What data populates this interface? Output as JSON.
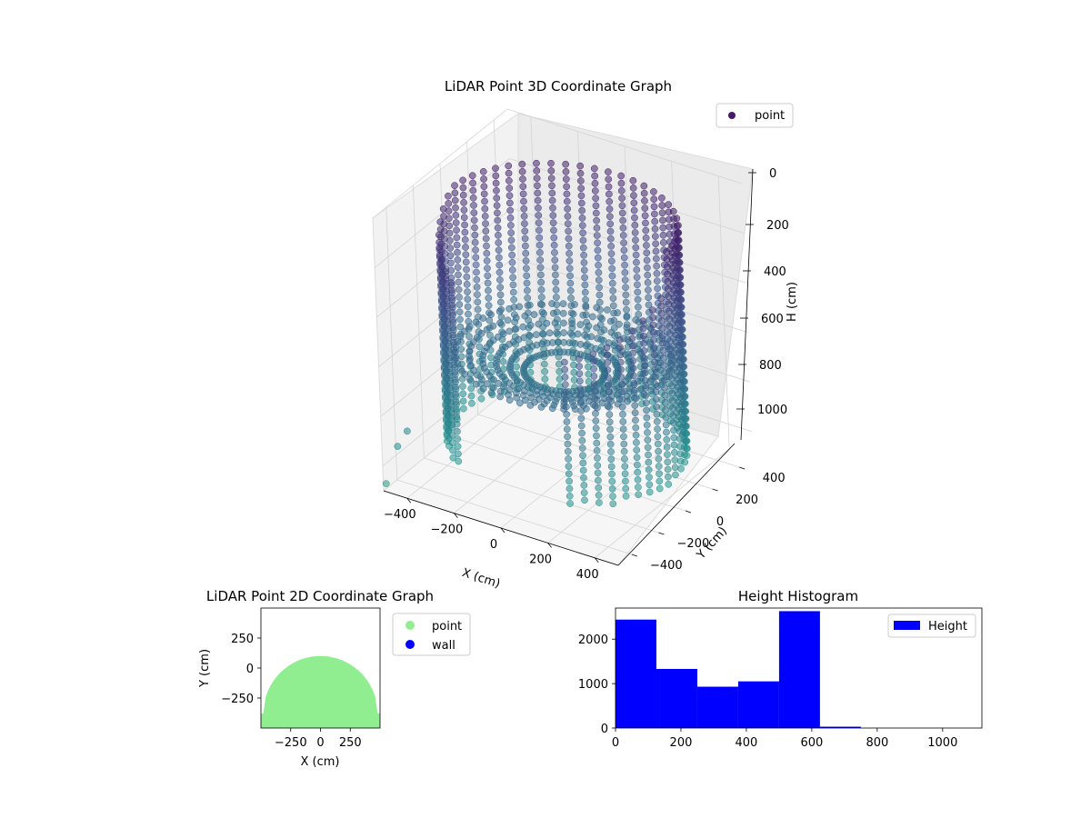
{
  "chart_data": [
    {
      "type": "scatter",
      "dimensions": 3,
      "title": "LiDAR Point 3D Coordinate Graph",
      "xlabel": "X (cm)",
      "ylabel": "Y (cm)",
      "zlabel": "H (cm)",
      "x_ticks": [
        "−400",
        "−200",
        "0",
        "200",
        "400"
      ],
      "y_ticks": [
        "−400",
        "−200",
        "0",
        "200",
        "400"
      ],
      "z_ticks": [
        "0",
        "200",
        "400",
        "600",
        "800",
        "1000"
      ],
      "xlim": [
        -500,
        500
      ],
      "ylim": [
        -500,
        500
      ],
      "zlim": [
        0,
        1100
      ],
      "z_axis_inverted": true,
      "colormap": "viridis",
      "legend": {
        "entries": [
          {
            "label": "point",
            "color": "#46176e"
          }
        ],
        "position": "upper right"
      },
      "grid": true,
      "outlier_points": [
        {
          "x": -480,
          "y": -420,
          "h": 950
        },
        {
          "x": -460,
          "y": -380,
          "h": 900
        },
        {
          "x": -500,
          "y": -480,
          "h": 1080
        }
      ],
      "wall_radius_cm": 450,
      "arc_deg": [
        -60,
        240
      ]
    },
    {
      "type": "scatter",
      "title": "LiDAR Point 2D Coordinate Graph",
      "xlabel": "X (cm)",
      "ylabel": "Y (cm)",
      "x_ticks": [
        "−250",
        "0",
        "250"
      ],
      "y_ticks": [
        "250",
        "0",
        "−250"
      ],
      "xlim": [
        -500,
        500
      ],
      "ylim": [
        -500,
        500
      ],
      "legend": {
        "entries": [
          {
            "label": "point",
            "color": "#90ee90"
          },
          {
            "label": "wall",
            "color": "#0000ff"
          }
        ],
        "position": "outside right"
      },
      "point_region": "half-disc",
      "region_radius_cm": 480,
      "region_center_y": -380
    },
    {
      "type": "bar",
      "subtype": "histogram",
      "title": "Height Histogram",
      "x_ticks": [
        "0",
        "200",
        "400",
        "600",
        "800",
        "1000"
      ],
      "y_ticks": [
        "0",
        "1000",
        "2000"
      ],
      "xlim": [
        0,
        1120
      ],
      "ylim": [
        0,
        2700
      ],
      "bin_edges": [
        0,
        125,
        250,
        375,
        500,
        625,
        750
      ],
      "values": [
        2440,
        1330,
        930,
        1050,
        2630,
        30
      ],
      "bar_color": "#0000ff",
      "legend": {
        "entries": [
          {
            "label": "Height",
            "color": "#0000ff"
          }
        ],
        "position": "upper right"
      }
    }
  ]
}
